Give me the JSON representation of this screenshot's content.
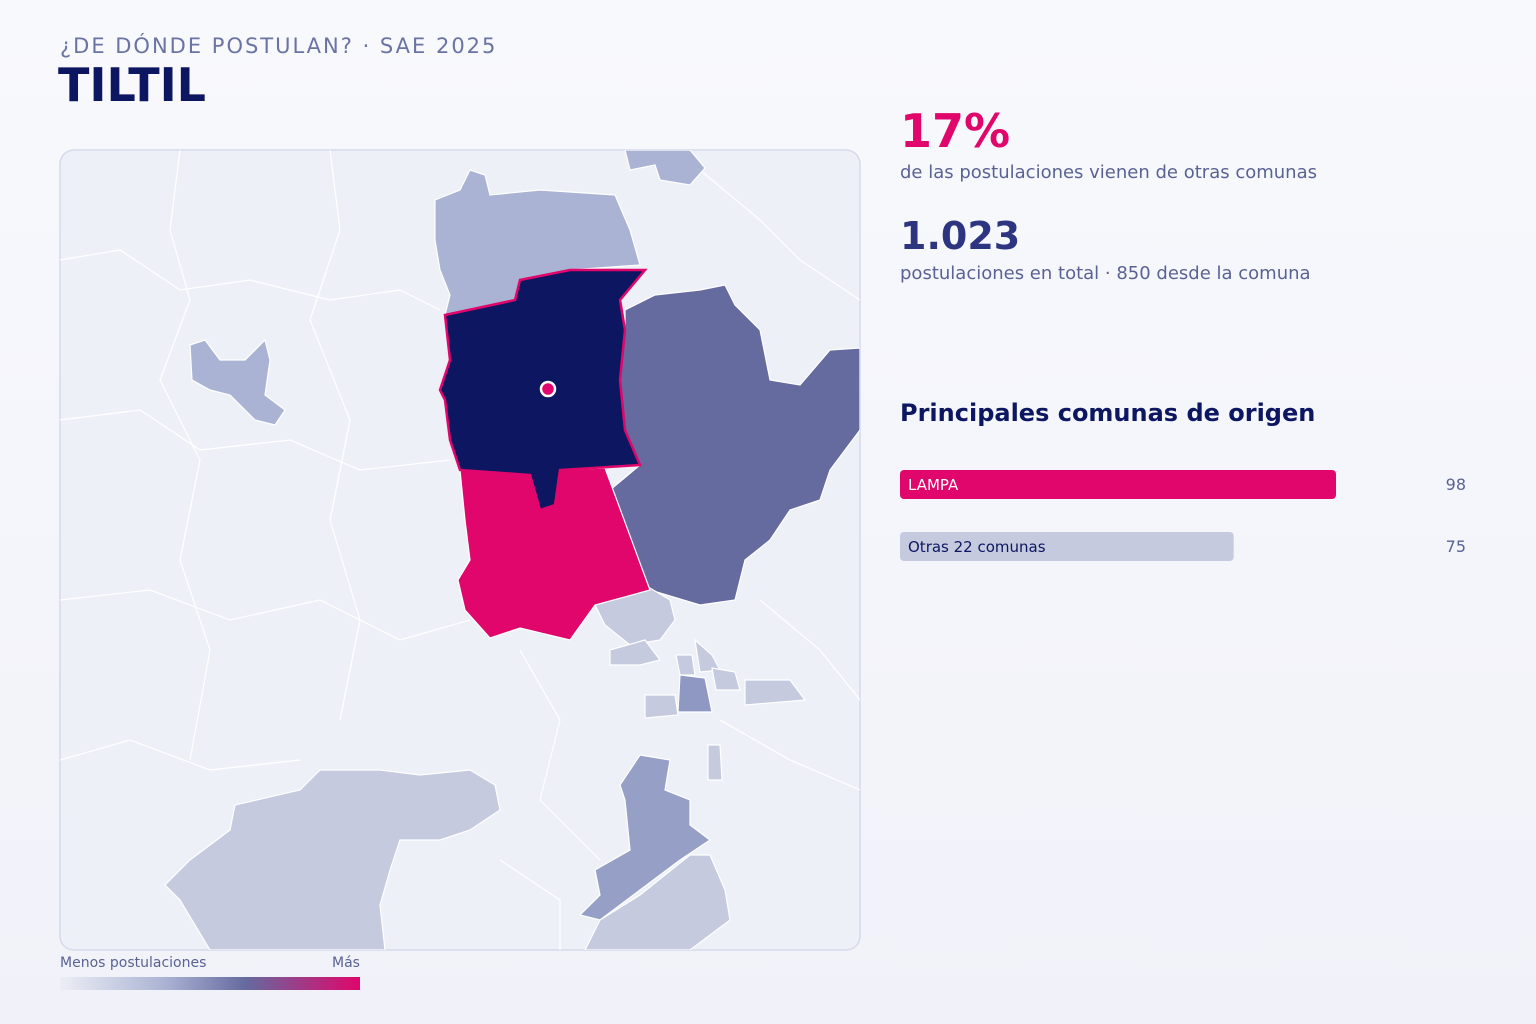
{
  "header": {
    "kicker": "¿DE DÓNDE POSTULAN? · SAE 2025",
    "title": "TILTIL"
  },
  "stats": [
    {
      "value": "17%",
      "caption": "de las postulaciones vienen de otras comunas"
    },
    {
      "value": "1.023",
      "caption": "postulaciones en total · 850 desde la comuna"
    }
  ],
  "legend": {
    "low": "Menos postulaciones",
    "high": "Más"
  },
  "chart_data": {
    "type": "bar",
    "title": "Principales comunas de origen",
    "categories": [
      "LAMPA",
      "Otras 22 comunas"
    ],
    "values": [
      98,
      75
    ],
    "colors": [
      "#e0066b",
      "#c5cade"
    ]
  }
}
